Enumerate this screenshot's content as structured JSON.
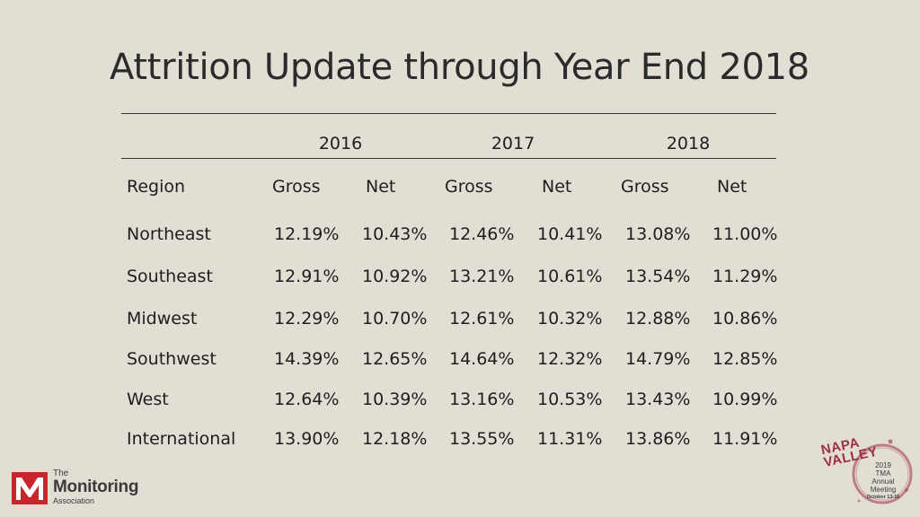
{
  "title": "Attrition Update through Year End 2018",
  "years": [
    "2016",
    "2017",
    "2018"
  ],
  "headers": {
    "region": "Region",
    "gross": "Gross",
    "net": "Net"
  },
  "rows": [
    {
      "region": "Northeast",
      "values": [
        "12.19%",
        "10.43%",
        "12.46%",
        "10.41%",
        "13.08%",
        "11.00%"
      ]
    },
    {
      "region": "Southeast",
      "values": [
        "12.91%",
        "10.92%",
        "13.21%",
        "10.61%",
        "13.54%",
        "11.29%"
      ]
    },
    {
      "region": "Midwest",
      "values": [
        "12.29%",
        "10.70%",
        "12.61%",
        "10.32%",
        "12.88%",
        "10.86%"
      ]
    },
    {
      "region": "Southwest",
      "values": [
        "14.39%",
        "12.65%",
        "14.64%",
        "12.32%",
        "14.79%",
        "12.85%"
      ]
    },
    {
      "region": "West",
      "values": [
        "12.64%",
        "10.39%",
        "13.16%",
        "10.53%",
        "13.43%",
        "10.99%"
      ]
    },
    {
      "region": "International",
      "values": [
        "13.90%",
        "12.18%",
        "13.55%",
        "11.31%",
        "13.86%",
        "11.91%"
      ]
    }
  ],
  "logo": {
    "the": "The",
    "name": "Monitoring",
    "association": "Association"
  },
  "badge": {
    "napa_line1": "NAPA",
    "napa_line2": "VALLEY",
    "line1": "2019",
    "line2": "TMA",
    "line3": "Annual",
    "line4": "Meeting",
    "line5": "October 13-16"
  },
  "colors": {
    "background": "#e3ded4",
    "logo_red": "#c8262c",
    "badge_wine": "#9b2f48"
  }
}
